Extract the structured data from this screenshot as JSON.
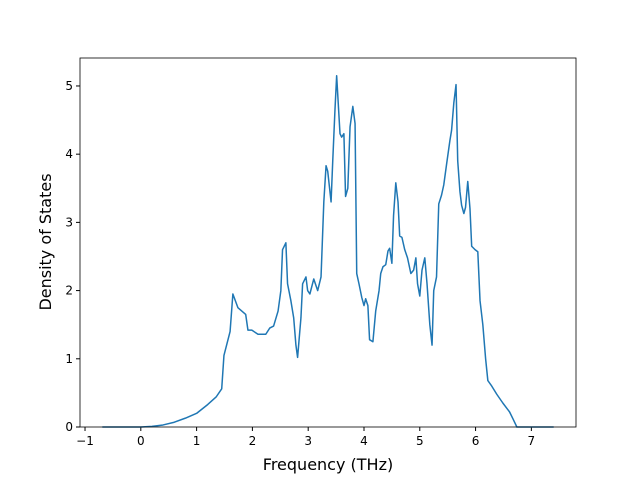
{
  "chart_data": {
    "type": "line",
    "xlabel": "Frequency (THz)",
    "ylabel": "Density of States",
    "x": [
      -0.69,
      0,
      0.2,
      0.4,
      0.6,
      0.8,
      1.0,
      1.2,
      1.35,
      1.45,
      1.49,
      1.6,
      1.65,
      1.74,
      1.88,
      1.92,
      1.99,
      2.1,
      2.24,
      2.31,
      2.38,
      2.46,
      2.51,
      2.54,
      2.6,
      2.63,
      2.69,
      2.74,
      2.78,
      2.81,
      2.87,
      2.9,
      2.96,
      2.99,
      3.03,
      3.1,
      3.17,
      3.23,
      3.28,
      3.32,
      3.35,
      3.41,
      3.44,
      3.48,
      3.51,
      3.57,
      3.6,
      3.64,
      3.67,
      3.71,
      3.75,
      3.8,
      3.84,
      3.87,
      3.91,
      3.96,
      4.0,
      4.03,
      4.07,
      4.1,
      4.16,
      4.21,
      4.27,
      4.3,
      4.34,
      4.39,
      4.43,
      4.46,
      4.5,
      4.53,
      4.57,
      4.61,
      4.64,
      4.68,
      4.73,
      4.78,
      4.84,
      4.89,
      4.93,
      4.96,
      5.0,
      5.04,
      5.09,
      5.13,
      5.18,
      5.22,
      5.25,
      5.3,
      5.34,
      5.39,
      5.43,
      5.48,
      5.54,
      5.57,
      5.61,
      5.65,
      5.68,
      5.72,
      5.75,
      5.79,
      5.82,
      5.86,
      5.9,
      5.93,
      5.99,
      6.04,
      6.08,
      6.13,
      6.18,
      6.22,
      6.29,
      6.38,
      6.49,
      6.61,
      6.67,
      6.74,
      7.4
    ],
    "series": [
      {
        "color": "#1f77b4",
        "values": [
          0,
          0,
          0.01,
          0.03,
          0.07,
          0.13,
          0.2,
          0.33,
          0.44,
          0.56,
          1.05,
          1.4,
          1.95,
          1.75,
          1.65,
          1.42,
          1.42,
          1.36,
          1.36,
          1.45,
          1.48,
          1.7,
          2.0,
          2.6,
          2.7,
          2.1,
          1.85,
          1.6,
          1.2,
          1.02,
          1.6,
          2.1,
          2.2,
          2.0,
          1.95,
          2.17,
          2.0,
          2.2,
          3.3,
          3.83,
          3.75,
          3.3,
          3.9,
          4.65,
          5.15,
          4.3,
          4.25,
          4.3,
          3.38,
          3.5,
          4.4,
          4.7,
          4.45,
          2.25,
          2.1,
          1.9,
          1.78,
          1.88,
          1.78,
          1.28,
          1.25,
          1.7,
          2.0,
          2.25,
          2.35,
          2.38,
          2.58,
          2.62,
          2.4,
          3.1,
          3.58,
          3.3,
          2.8,
          2.78,
          2.6,
          2.48,
          2.25,
          2.3,
          2.48,
          2.1,
          1.92,
          2.3,
          2.48,
          2.1,
          1.5,
          1.2,
          2.0,
          2.2,
          3.27,
          3.4,
          3.55,
          3.85,
          4.2,
          4.35,
          4.75,
          5.02,
          3.9,
          3.45,
          3.25,
          3.13,
          3.22,
          3.6,
          3.2,
          2.65,
          2.6,
          2.57,
          1.85,
          1.5,
          1.0,
          0.68,
          0.6,
          0.48,
          0.35,
          0.22,
          0.12,
          0.0,
          0.0
        ]
      }
    ],
    "xlim": [
      -1.09,
      7.8
    ],
    "ylim": [
      0,
      5.41
    ],
    "xticks": [
      {
        "value": -1,
        "label": "−1"
      },
      0,
      1,
      2,
      3,
      4,
      5,
      6,
      7
    ],
    "yticks": [
      0,
      1,
      2,
      3,
      4,
      5
    ]
  }
}
